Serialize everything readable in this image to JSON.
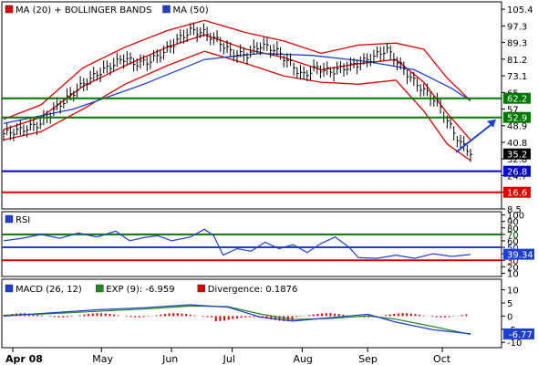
{
  "chart_data": [
    {
      "type": "line",
      "panel": "price",
      "legend": [
        {
          "label": "MA (20) + BOLLINGER BANDS",
          "color": "#dd0000"
        },
        {
          "label": "MA (50)",
          "color": "#1f3fd0"
        }
      ],
      "yticks": [
        105.4,
        97.3,
        89.3,
        81.2,
        73.1,
        65,
        57,
        48.9,
        40.8,
        32.8,
        24.7,
        16.6,
        8.5
      ],
      "ylim": [
        8.5,
        109
      ],
      "xticks": [
        "Apr 08",
        "May",
        "Jun",
        "Jul",
        "Aug",
        "Sep",
        "Oct"
      ],
      "levels": [
        {
          "label": "62.2",
          "value": 62.2,
          "color": "#007700",
          "badge": "#007700"
        },
        {
          "label": "52.9",
          "value": 52.9,
          "color": "#007700",
          "badge": "#007700"
        },
        {
          "label": "35.2",
          "value": 35.2,
          "color": "#000000",
          "badge": "#000000"
        },
        {
          "label": "26.8",
          "value": 26.8,
          "color": "#0000cc",
          "badge": "#0000cc"
        },
        {
          "label": "16.6",
          "value": 16.6,
          "color": "#dd0000",
          "badge": "#dd0000"
        }
      ],
      "arrow": {
        "from": [
          0.965,
          36
        ],
        "to": [
          1.0,
          52
        ],
        "color": "#1f3fd0"
      },
      "close_path": [
        [
          0,
          45
        ],
        [
          0.04,
          47
        ],
        [
          0.08,
          50
        ],
        [
          0.11,
          57
        ],
        [
          0.14,
          63
        ],
        [
          0.17,
          69
        ],
        [
          0.2,
          74
        ],
        [
          0.23,
          78
        ],
        [
          0.26,
          82
        ],
        [
          0.28,
          79
        ],
        [
          0.31,
          80
        ],
        [
          0.34,
          84
        ],
        [
          0.37,
          90
        ],
        [
          0.4,
          95
        ],
        [
          0.43,
          94
        ],
        [
          0.46,
          90
        ],
        [
          0.49,
          84
        ],
        [
          0.52,
          83
        ],
        [
          0.55,
          88
        ],
        [
          0.58,
          86
        ],
        [
          0.61,
          80
        ],
        [
          0.64,
          73
        ],
        [
          0.67,
          77
        ],
        [
          0.7,
          75
        ],
        [
          0.73,
          77
        ],
        [
          0.76,
          79
        ],
        [
          0.79,
          82
        ],
        [
          0.82,
          86
        ],
        [
          0.85,
          78
        ],
        [
          0.88,
          70
        ],
        [
          0.9,
          66
        ],
        [
          0.93,
          60
        ],
        [
          0.96,
          47
        ],
        [
          0.98,
          40
        ],
        [
          1.0,
          36
        ]
      ],
      "ma20": [
        [
          0,
          47
        ],
        [
          0.08,
          53
        ],
        [
          0.17,
          68
        ],
        [
          0.26,
          78
        ],
        [
          0.35,
          87
        ],
        [
          0.43,
          93
        ],
        [
          0.52,
          86
        ],
        [
          0.6,
          82
        ],
        [
          0.68,
          76
        ],
        [
          0.76,
          79
        ],
        [
          0.84,
          81
        ],
        [
          0.9,
          70
        ],
        [
          0.95,
          55
        ],
        [
          1.0,
          42
        ]
      ],
      "bb_upper": [
        [
          0,
          52
        ],
        [
          0.08,
          59
        ],
        [
          0.17,
          77
        ],
        [
          0.26,
          87
        ],
        [
          0.35,
          95
        ],
        [
          0.43,
          100
        ],
        [
          0.52,
          94
        ],
        [
          0.6,
          90
        ],
        [
          0.68,
          84
        ],
        [
          0.76,
          88
        ],
        [
          0.84,
          89
        ],
        [
          0.9,
          86
        ],
        [
          0.95,
          72
        ],
        [
          1.0,
          61
        ]
      ],
      "bb_lower": [
        [
          0,
          42
        ],
        [
          0.08,
          46
        ],
        [
          0.17,
          57
        ],
        [
          0.26,
          69
        ],
        [
          0.35,
          78
        ],
        [
          0.43,
          85
        ],
        [
          0.52,
          79
        ],
        [
          0.6,
          73
        ],
        [
          0.68,
          70
        ],
        [
          0.76,
          69
        ],
        [
          0.84,
          71
        ],
        [
          0.9,
          56
        ],
        [
          0.95,
          40
        ],
        [
          1.0,
          32
        ]
      ],
      "ma50": [
        [
          0,
          50
        ],
        [
          0.15,
          57
        ],
        [
          0.3,
          69
        ],
        [
          0.43,
          81
        ],
        [
          0.55,
          84
        ],
        [
          0.66,
          83
        ],
        [
          0.78,
          80
        ],
        [
          0.88,
          76
        ],
        [
          0.96,
          67
        ],
        [
          1.0,
          61
        ]
      ]
    },
    {
      "type": "line",
      "panel": "rsi",
      "legend": [
        {
          "label": "RSI",
          "color": "#1f3fd0"
        }
      ],
      "yticks": [
        100,
        90,
        80,
        70,
        60,
        50,
        40,
        30,
        20,
        10
      ],
      "ylim": [
        5,
        105
      ],
      "levels": [
        {
          "label": "70",
          "value": 70,
          "color": "#007700"
        },
        {
          "label": "50",
          "value": 50,
          "color": "#1f3fd0"
        },
        {
          "label": "30",
          "value": 30,
          "color": "#dd0000"
        }
      ],
      "current_badge": "39.34",
      "values": [
        [
          0,
          60
        ],
        [
          0.04,
          64
        ],
        [
          0.08,
          70
        ],
        [
          0.12,
          64
        ],
        [
          0.16,
          72
        ],
        [
          0.2,
          66
        ],
        [
          0.24,
          75
        ],
        [
          0.27,
          60
        ],
        [
          0.3,
          65
        ],
        [
          0.33,
          68
        ],
        [
          0.36,
          60
        ],
        [
          0.4,
          66
        ],
        [
          0.43,
          78
        ],
        [
          0.45,
          68
        ],
        [
          0.47,
          38
        ],
        [
          0.5,
          48
        ],
        [
          0.53,
          44
        ],
        [
          0.56,
          58
        ],
        [
          0.59,
          48
        ],
        [
          0.62,
          54
        ],
        [
          0.65,
          42
        ],
        [
          0.68,
          56
        ],
        [
          0.71,
          66
        ],
        [
          0.74,
          50
        ],
        [
          0.76,
          34
        ],
        [
          0.8,
          33
        ],
        [
          0.84,
          38
        ],
        [
          0.88,
          33
        ],
        [
          0.92,
          40
        ],
        [
          0.96,
          36
        ],
        [
          1.0,
          39
        ]
      ]
    },
    {
      "type": "line",
      "panel": "macd",
      "legend": [
        {
          "label": "MACD (26, 12)",
          "color": "#1f3fd0"
        },
        {
          "label": "EXP (9): -6.959",
          "color": "#228822"
        },
        {
          "label": "Divergence: 0.1876",
          "color": "#dd0000"
        }
      ],
      "yticks": [
        10,
        5,
        0,
        -5,
        -10
      ],
      "ylim": [
        -12,
        14
      ],
      "current_badge": "-6.77",
      "macd": [
        [
          0,
          0
        ],
        [
          0.1,
          1.2
        ],
        [
          0.2,
          2.4
        ],
        [
          0.3,
          3.2
        ],
        [
          0.4,
          4.3
        ],
        [
          0.48,
          3.4
        ],
        [
          0.55,
          -0.4
        ],
        [
          0.62,
          -1.9
        ],
        [
          0.7,
          -0.6
        ],
        [
          0.78,
          0.7
        ],
        [
          0.84,
          -2.3
        ],
        [
          0.92,
          -5.2
        ],
        [
          1.0,
          -6.77
        ]
      ],
      "signal": [
        [
          0,
          0.3
        ],
        [
          0.1,
          0.9
        ],
        [
          0.2,
          1.8
        ],
        [
          0.3,
          2.7
        ],
        [
          0.4,
          3.8
        ],
        [
          0.48,
          3.6
        ],
        [
          0.55,
          0.8
        ],
        [
          0.62,
          -1.3
        ],
        [
          0.7,
          -0.9
        ],
        [
          0.78,
          0.1
        ],
        [
          0.84,
          -1.2
        ],
        [
          0.92,
          -4.0
        ],
        [
          1.0,
          -6.959
        ]
      ],
      "divergence": [
        [
          0.05,
          0.3
        ],
        [
          0.15,
          0.7
        ],
        [
          0.25,
          0.5
        ],
        [
          0.35,
          0.6
        ],
        [
          0.43,
          0.4
        ],
        [
          0.5,
          -0.8
        ],
        [
          0.58,
          -1.2
        ],
        [
          0.66,
          -0.3
        ],
        [
          0.74,
          0.5
        ],
        [
          0.82,
          -0.8
        ],
        [
          0.9,
          -1.0
        ],
        [
          0.96,
          -0.5
        ]
      ]
    }
  ]
}
